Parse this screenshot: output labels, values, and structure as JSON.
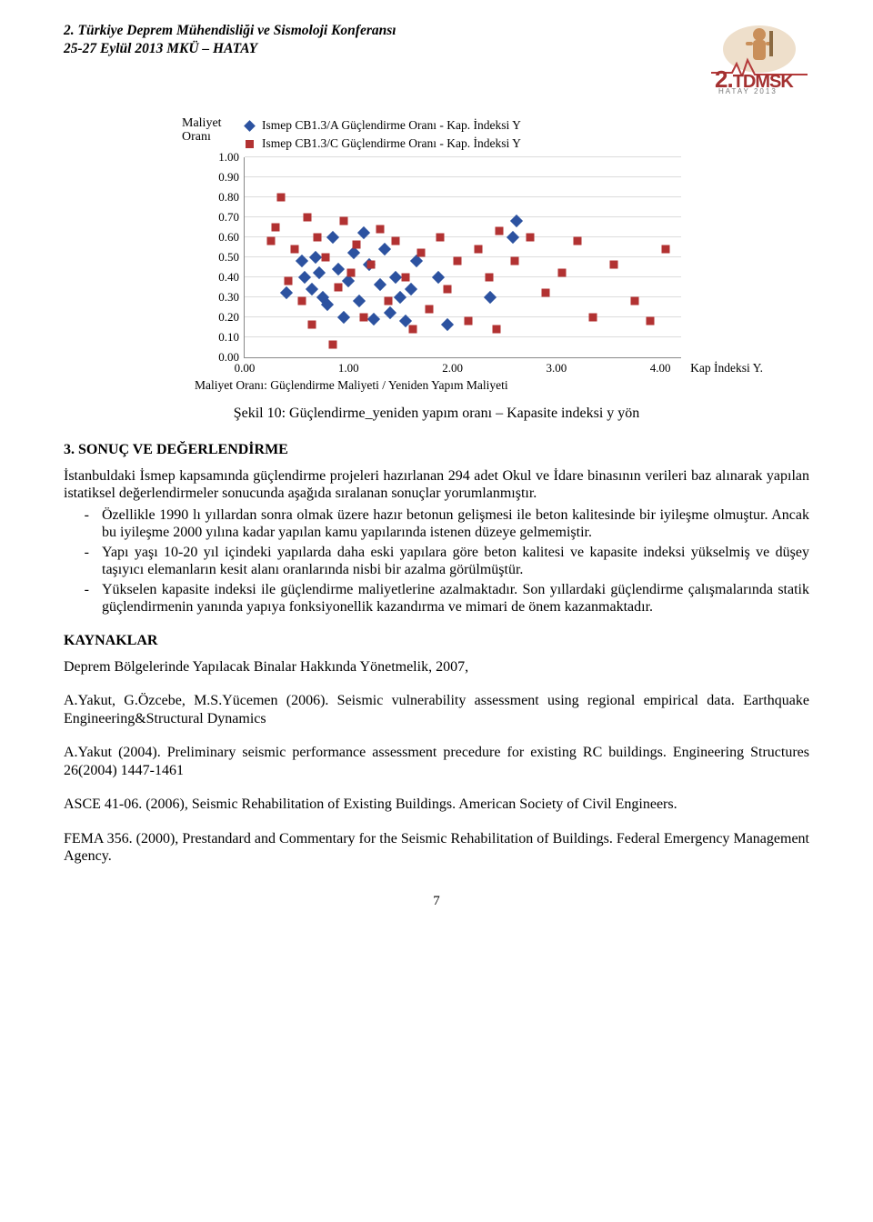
{
  "header": {
    "line1": "2. Türkiye Deprem Mühendisliği ve Sismoloji Konferansı",
    "line2": "25-27 Eylül 2013 MKÜ – HATAY",
    "logo_brand_num": "2.",
    "logo_brand_text": "TDMSK",
    "logo_sub": "HATAY 2013"
  },
  "chart": {
    "type": "scatter",
    "yaxis_label_line1": "Maliyet",
    "yaxis_label_line2": "Oranı",
    "xaxis_label": "Kap İndeksi Y.",
    "legend": [
      {
        "marker": "diamond",
        "color": "#2c52a0",
        "label": "Ismep CB1.3/A Güçlendirme Oranı - Kap. İndeksi Y"
      },
      {
        "marker": "square",
        "color": "#b23232",
        "label": "Ismep CB1.3/C Güçlendirme Oranı - Kap. İndeksi Y"
      }
    ],
    "xlim": [
      0,
      4.2
    ],
    "ylim": [
      0,
      1.0
    ],
    "xticks": [
      0.0,
      1.0,
      2.0,
      3.0,
      4.0
    ],
    "xtick_labels": [
      "0.00",
      "1.00",
      "2.00",
      "3.00",
      "4.00"
    ],
    "yticks": [
      0.0,
      0.1,
      0.2,
      0.3,
      0.4,
      0.5,
      0.6,
      0.7,
      0.8,
      0.9,
      1.0
    ],
    "ytick_labels": [
      "0.00",
      "0.10",
      "0.20",
      "0.30",
      "0.40",
      "0.50",
      "0.60",
      "0.70",
      "0.80",
      "0.90",
      "1.00"
    ],
    "grid_color": "#dcdcdc",
    "axis_color": "#888888",
    "background_color": "#ffffff",
    "series": [
      {
        "name": "A",
        "marker": "diamond",
        "color": "#2c52a0",
        "size": 10,
        "points": [
          [
            0.4,
            0.32
          ],
          [
            0.55,
            0.48
          ],
          [
            0.58,
            0.4
          ],
          [
            0.65,
            0.34
          ],
          [
            0.68,
            0.5
          ],
          [
            0.72,
            0.42
          ],
          [
            0.75,
            0.3
          ],
          [
            0.8,
            0.26
          ],
          [
            0.85,
            0.6
          ],
          [
            0.9,
            0.44
          ],
          [
            0.95,
            0.2
          ],
          [
            1.0,
            0.38
          ],
          [
            1.05,
            0.52
          ],
          [
            1.1,
            0.28
          ],
          [
            1.15,
            0.62
          ],
          [
            1.2,
            0.46
          ],
          [
            1.24,
            0.19
          ],
          [
            1.3,
            0.36
          ],
          [
            1.35,
            0.54
          ],
          [
            1.4,
            0.22
          ],
          [
            1.45,
            0.4
          ],
          [
            1.5,
            0.3
          ],
          [
            1.55,
            0.18
          ],
          [
            1.6,
            0.34
          ],
          [
            1.65,
            0.48
          ],
          [
            1.86,
            0.4
          ],
          [
            1.95,
            0.16
          ],
          [
            2.36,
            0.3
          ],
          [
            2.58,
            0.6
          ],
          [
            2.62,
            0.68
          ]
        ]
      },
      {
        "name": "C",
        "marker": "square",
        "color": "#b23232",
        "size": 9,
        "points": [
          [
            0.25,
            0.58
          ],
          [
            0.3,
            0.65
          ],
          [
            0.35,
            0.8
          ],
          [
            0.42,
            0.38
          ],
          [
            0.48,
            0.54
          ],
          [
            0.55,
            0.28
          ],
          [
            0.6,
            0.7
          ],
          [
            0.65,
            0.16
          ],
          [
            0.7,
            0.6
          ],
          [
            0.78,
            0.5
          ],
          [
            0.85,
            0.06
          ],
          [
            0.9,
            0.35
          ],
          [
            0.95,
            0.68
          ],
          [
            1.02,
            0.42
          ],
          [
            1.08,
            0.56
          ],
          [
            1.15,
            0.2
          ],
          [
            1.22,
            0.46
          ],
          [
            1.3,
            0.64
          ],
          [
            1.38,
            0.28
          ],
          [
            1.45,
            0.58
          ],
          [
            1.55,
            0.4
          ],
          [
            1.62,
            0.14
          ],
          [
            1.7,
            0.52
          ],
          [
            1.78,
            0.24
          ],
          [
            1.88,
            0.6
          ],
          [
            1.95,
            0.34
          ],
          [
            2.05,
            0.48
          ],
          [
            2.15,
            0.18
          ],
          [
            2.25,
            0.54
          ],
          [
            2.35,
            0.4
          ],
          [
            2.45,
            0.63
          ],
          [
            2.42,
            0.14
          ],
          [
            2.6,
            0.48
          ],
          [
            2.75,
            0.6
          ],
          [
            2.9,
            0.32
          ],
          [
            3.05,
            0.42
          ],
          [
            3.2,
            0.58
          ],
          [
            3.35,
            0.2
          ],
          [
            3.55,
            0.46
          ],
          [
            3.75,
            0.28
          ],
          [
            3.9,
            0.18
          ],
          [
            4.05,
            0.54
          ]
        ]
      }
    ],
    "footnote": "Maliyet Oranı: Güçlendirme Maliyeti / Yeniden Yapım Maliyeti",
    "caption": "Şekil 10: Güçlendirme_yeniden yapım oranı – Kapasite indeksi y yön"
  },
  "section1_heading": "3. SONUÇ VE DEĞERLENDİRME",
  "section1_intro": "İstanbuldaki İsmep kapsamında güçlendirme projeleri hazırlanan 294 adet Okul ve İdare binasının verileri  baz alınarak yapılan istatiksel değerlendirmeler sonucunda aşağıda sıralanan sonuçlar yorumlanmıştır.",
  "bullets": [
    "Özellikle 1990 lı yıllardan sonra olmak üzere hazır betonun gelişmesi ile beton kalitesinde bir iyileşme olmuştur. Ancak bu iyileşme 2000 yılına kadar yapılan kamu yapılarında istenen düzeye gelmemiştir.",
    "Yapı yaşı 10-20 yıl içindeki yapılarda daha eski yapılara göre beton kalitesi ve kapasite indeksi yükselmiş ve düşey taşıyıcı elemanların kesit alanı oranlarında nisbi bir azalma görülmüştür.",
    "Yükselen kapasite indeksi ile güçlendirme maliyetlerine azalmaktadır. Son yıllardaki güçlendirme çalışmalarında statik güçlendirmenin yanında yapıya fonksiyonellik kazandırma ve mimari de önem kazanmaktadır."
  ],
  "kaynaklar_heading": "KAYNAKLAR",
  "refs": [
    "Deprem Bölgelerinde Yapılacak Binalar Hakkında Yönetmelik,  2007,",
    "A.Yakut, G.Özcebe, M.S.Yücemen (2006). Seismic vulnerability assessment using regional empirical data. Earthquake Engineering&Structural Dynamics",
    "A.Yakut (2004). Preliminary seismic performance assessment precedure for existing RC buildings. Engineering Structures 26(2004) 1447-1461",
    "ASCE 41-06. (2006), Seismic Rehabilitation of Existing Buildings. American Society of Civil Engineers.",
    "FEMA 356. (2000), Prestandard and Commentary for the Seismic Rehabilitation of Buildings.  Federal Emergency Management Agency."
  ],
  "page_number": "7"
}
